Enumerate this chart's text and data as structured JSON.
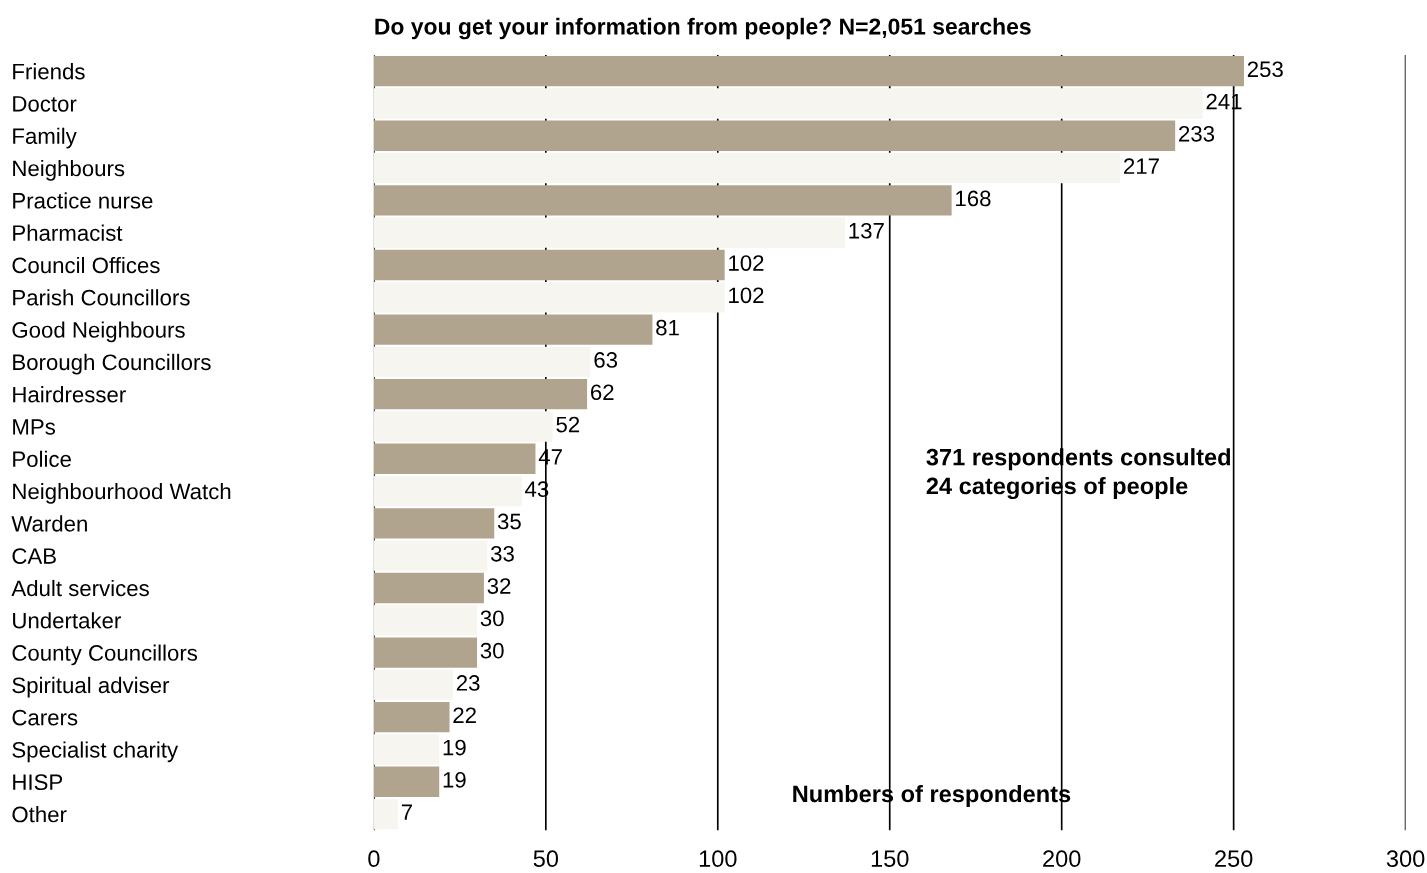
{
  "chart_data": {
    "type": "bar",
    "orientation": "horizontal",
    "title": "Do you get your information from people? N=2,051 searches",
    "xlabel": "Numbers of respondents",
    "categories": [
      "Friends",
      "Doctor",
      "Family",
      "Neighbours",
      "Practice nurse",
      "Pharmacist",
      "Council Offices",
      "Parish Councillors",
      "Good Neighbours",
      "Borough Councillors",
      "Hairdresser",
      "MPs",
      "Police",
      "Neighbourhood Watch",
      "Warden",
      "CAB",
      "Adult services",
      "Undertaker",
      "County Councillors",
      "Spiritual adviser",
      "Carers",
      "Specialist charity",
      "HISP",
      "Other"
    ],
    "values": [
      253,
      241,
      233,
      217,
      168,
      137,
      102,
      102,
      81,
      63,
      62,
      52,
      47,
      43,
      35,
      33,
      32,
      30,
      30,
      23,
      22,
      19,
      19,
      7
    ],
    "colors": [
      "#b0a48e",
      "#f7f5f0",
      "#b0a48e",
      "#f7f5f0",
      "#b0a48e",
      "#f7f5f0",
      "#b0a48e",
      "#f7f5f0",
      "#b0a48e",
      "#f7f5f0",
      "#b0a48e",
      "#f7f5f0",
      "#b0a48e",
      "#f7f5f0",
      "#b0a48e",
      "#f7f5f0",
      "#b0a48e",
      "#f7f5f0",
      "#b0a48e",
      "#f7f5f0",
      "#b0a48e",
      "#f7f5f0",
      "#b0a48e",
      "#f7f5f0"
    ],
    "xlim": [
      0,
      300
    ],
    "xticks": [
      0,
      50,
      100,
      150,
      200,
      250,
      300
    ],
    "grid": "x",
    "data_labels": true,
    "legend": false,
    "annotations": [
      "371 respondents consulted\n24 categories of people"
    ]
  }
}
